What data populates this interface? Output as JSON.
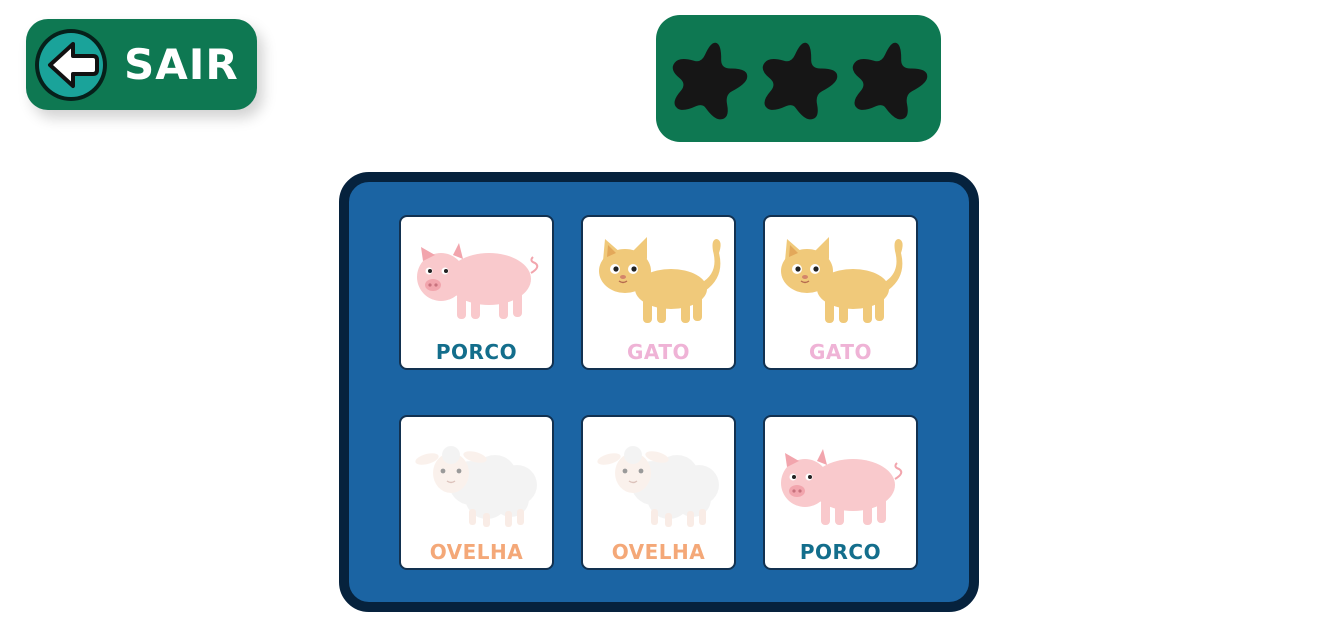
{
  "exit_button": {
    "label": "SAIR",
    "icon": "arrow-left-icon",
    "color": "#0e7852"
  },
  "stars": {
    "earned": 0,
    "total": 3,
    "icon": "star-icon",
    "empty_color": "#161616",
    "panel_color": "#0e7852"
  },
  "board": {
    "background": "#1b64a3",
    "border_color": "#06223d",
    "cards": [
      {
        "animal": "pig",
        "icon": "pig-icon",
        "label": "PORCO",
        "label_color": "#136e8c",
        "faded": false
      },
      {
        "animal": "cat",
        "icon": "cat-icon",
        "label": "GATO",
        "label_color": "#efb3d6",
        "faded": false
      },
      {
        "animal": "cat",
        "icon": "cat-icon",
        "label": "GATO",
        "label_color": "#efb3d6",
        "faded": false
      },
      {
        "animal": "sheep",
        "icon": "sheep-icon",
        "label": "OVELHA",
        "label_color": "#f4a878",
        "faded": true
      },
      {
        "animal": "sheep",
        "icon": "sheep-icon",
        "label": "OVELHA",
        "label_color": "#f4a878",
        "faded": true
      },
      {
        "animal": "pig",
        "icon": "pig-icon",
        "label": "PORCO",
        "label_color": "#136e8c",
        "faded": false
      }
    ]
  }
}
